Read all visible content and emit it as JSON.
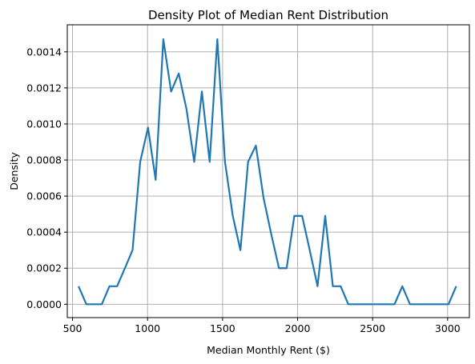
{
  "chart_data": {
    "type": "line",
    "title": "Density Plot of Median Rent Distribution",
    "xlabel": "Median Monthly Rent ($)",
    "ylabel": "Density",
    "xlim": [
      465,
      3145
    ],
    "ylim": [
      -7.4e-05,
      0.00155
    ],
    "xticks": [
      500,
      1000,
      1500,
      2000,
      2500,
      3000
    ],
    "xtick_labels": [
      "500",
      "1000",
      "1500",
      "2000",
      "2500",
      "3000"
    ],
    "yticks": [
      0,
      0.0002,
      0.0004,
      0.0006,
      0.0008,
      0.001,
      0.0012,
      0.0014
    ],
    "ytick_labels": [
      "0.0000",
      "0.0002",
      "0.0004",
      "0.0006",
      "0.0008",
      "0.0010",
      "0.0012",
      "0.0014"
    ],
    "grid": true,
    "line_color": "#1f77b4",
    "series": [
      {
        "x": [
          540,
          592,
          643,
          695,
          746,
          797,
          849,
          900,
          951,
          1003,
          1054,
          1105,
          1157,
          1208,
          1260,
          1311,
          1362,
          1414,
          1465,
          1516,
          1568,
          1619,
          1670,
          1722,
          1773,
          1824,
          1876,
          1927,
          1978,
          2030,
          2081,
          2133,
          2184,
          2235,
          2287,
          2338,
          2389,
          2441,
          2492,
          2544,
          2595,
          2646,
          2698,
          2749,
          2800,
          2852,
          2903,
          2954,
          3006,
          3057
        ],
        "y": [
          0.0001,
          0,
          0,
          0,
          0.0001,
          0.0001,
          0.0002,
          0.0003,
          0.00079,
          0.00098,
          0.00069,
          0.00147,
          0.00118,
          0.00128,
          0.00108,
          0.00079,
          0.00118,
          0.00079,
          0.00147,
          0.00079,
          0.00049,
          0.0003,
          0.00079,
          0.00088,
          0.00059,
          0.00039,
          0.0002,
          0.0002,
          0.00049,
          0.00049,
          0.0003,
          0.0001,
          0.00049,
          0.0001,
          0.0001,
          0,
          0,
          0,
          0,
          0,
          0,
          0,
          0.0001,
          0,
          0,
          0,
          0,
          0,
          0,
          0.0001
        ]
      }
    ]
  }
}
